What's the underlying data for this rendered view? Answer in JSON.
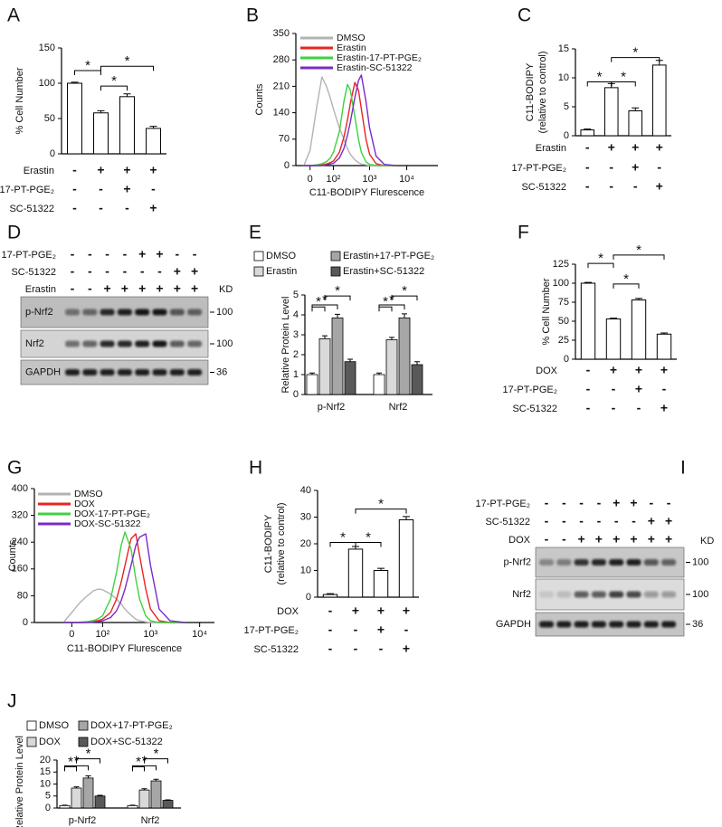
{
  "chart_data": [
    {
      "panel": "A",
      "type": "bar",
      "ylabel": "% Cell Number",
      "values": [
        100,
        58,
        81,
        36
      ],
      "errors": [
        1.5,
        3,
        4,
        3
      ],
      "color": "#ffffff",
      "ylim": [
        0,
        150
      ],
      "yticks": [
        0,
        50,
        100,
        150
      ],
      "conditions": [
        {
          "label": "Erastin",
          "marks": [
            "-",
            "+",
            "+",
            "+"
          ]
        },
        {
          "label": "17-PT-PGE₂",
          "marks": [
            "-",
            "-",
            "+",
            "-"
          ]
        },
        {
          "label": "SC-51322",
          "marks": [
            "-",
            "-",
            "-",
            "+"
          ]
        }
      ],
      "annotations": [
        "*",
        "*",
        "*"
      ]
    },
    {
      "panel": "B",
      "type": "line",
      "xscale": "biexponential",
      "xlabel": "C11-BODIPY Flurescence",
      "ylabel": "Counts",
      "x": [
        -20,
        0,
        20,
        40,
        60,
        80,
        100,
        150,
        200,
        250,
        300,
        400,
        500,
        600,
        800,
        1000,
        1500,
        2500,
        5000
      ],
      "series": [
        {
          "name": "DMSO",
          "color": "#b3b3b3",
          "values": [
            0,
            40,
            150,
            235,
            210,
            180,
            150,
            100,
            70,
            45,
            30,
            15,
            8,
            4,
            2,
            0,
            0,
            0,
            0
          ]
        },
        {
          "name": "Erastin",
          "color": "#e8251f",
          "values": [
            0,
            0,
            0,
            2,
            4,
            8,
            12,
            35,
            75,
            120,
            165,
            220,
            200,
            150,
            70,
            30,
            5,
            0,
            0
          ]
        },
        {
          "name": "Erastin-17-PT-PGE₂",
          "color": "#3fd13f",
          "values": [
            0,
            0,
            2,
            5,
            10,
            20,
            35,
            90,
            170,
            215,
            200,
            130,
            70,
            35,
            10,
            3,
            0,
            0,
            0
          ]
        },
        {
          "name": "Erastin-SC-51322",
          "color": "#7a2bc7",
          "values": [
            0,
            0,
            0,
            0,
            2,
            4,
            6,
            20,
            45,
            80,
            115,
            180,
            225,
            240,
            170,
            100,
            25,
            3,
            0
          ]
        }
      ],
      "xlim": [
        -50,
        69000
      ],
      "xticks": [
        0,
        {
          "value": 100,
          "label": "10²"
        },
        {
          "value": 1000,
          "label": "10³"
        },
        {
          "value": 10000,
          "label": "10⁴"
        }
      ],
      "ylim": [
        0,
        350
      ],
      "yticks": [
        0,
        70,
        140,
        210,
        280,
        350
      ],
      "legend": "upper left"
    },
    {
      "panel": "C",
      "type": "bar",
      "ylabel": [
        "C11-BODIPY",
        "(relative to control)"
      ],
      "values": [
        1,
        8.3,
        4.3,
        12.2
      ],
      "errors": [
        0.15,
        0.7,
        0.5,
        0.8
      ],
      "color": "#ffffff",
      "ylim": [
        0,
        15
      ],
      "yticks": [
        0,
        5,
        10,
        15
      ],
      "conditions": [
        {
          "label": "Erastin",
          "marks": [
            "-",
            "+",
            "+",
            "+"
          ]
        },
        {
          "label": "17-PT-PGE₂",
          "marks": [
            "-",
            "-",
            "+",
            "-"
          ]
        },
        {
          "label": "SC-51322",
          "marks": [
            "-",
            "-",
            "-",
            "+"
          ]
        }
      ],
      "annotations": [
        "*",
        "*",
        "*"
      ]
    },
    {
      "panel": "E",
      "type": "bar",
      "ylabel": "Relative Protein Level",
      "categories": [
        "p-Nrf2",
        "Nrf2"
      ],
      "series": [
        {
          "name": "DMSO",
          "color": "#ffffff",
          "values": [
            1,
            1
          ],
          "errors": [
            0.08,
            0.08
          ]
        },
        {
          "name": "Erastin",
          "color": "#d9d9d9",
          "values": [
            2.8,
            2.75
          ],
          "errors": [
            0.15,
            0.12
          ]
        },
        {
          "name": "Erastin+17-PT-PGE₂",
          "color": "#a6a6a6",
          "values": [
            3.85,
            3.85
          ],
          "errors": [
            0.18,
            0.2
          ]
        },
        {
          "name": "Erastin+SC-51322",
          "color": "#595959",
          "values": [
            1.65,
            1.5
          ],
          "errors": [
            0.12,
            0.15
          ]
        }
      ],
      "ylim": [
        0,
        5
      ],
      "yticks": [
        0,
        1,
        2,
        3,
        4,
        5
      ],
      "legend": "top",
      "annotations": [
        "*",
        "*",
        "*",
        "*",
        "*",
        "*"
      ]
    },
    {
      "panel": "F",
      "type": "bar",
      "ylabel": "% Cell Number",
      "values": [
        100,
        53,
        78,
        33
      ],
      "errors": [
        1,
        1,
        2,
        1.5
      ],
      "color": "#ffffff",
      "ylim": [
        0,
        125
      ],
      "yticks": [
        0,
        25,
        50,
        75,
        100,
        125
      ],
      "conditions": [
        {
          "label": "DOX",
          "marks": [
            "-",
            "+",
            "+",
            "+"
          ]
        },
        {
          "label": "17-PT-PGE₂",
          "marks": [
            "-",
            "-",
            "+",
            "-"
          ]
        },
        {
          "label": "SC-51322",
          "marks": [
            "-",
            "-",
            "-",
            "+"
          ]
        }
      ],
      "annotations": [
        "*",
        "*",
        "*"
      ]
    },
    {
      "panel": "G",
      "type": "line",
      "xscale": "biexponential",
      "xlabel": "C11-BODIPY Flurescence",
      "ylabel": "Counts",
      "x": [
        -20,
        0,
        20,
        40,
        60,
        80,
        100,
        150,
        200,
        250,
        300,
        400,
        500,
        600,
        800,
        1000,
        1500,
        2500,
        5000
      ],
      "series": [
        {
          "name": "DMSO",
          "color": "#b3b3b3",
          "values": [
            0,
            30,
            60,
            80,
            95,
            100,
            98,
            85,
            70,
            55,
            40,
            22,
            10,
            5,
            2,
            0,
            0,
            0,
            0
          ]
        },
        {
          "name": "DOX",
          "color": "#e8251f",
          "values": [
            0,
            0,
            0,
            1,
            3,
            6,
            10,
            30,
            70,
            120,
            170,
            250,
            265,
            200,
            100,
            40,
            5,
            0,
            0
          ]
        },
        {
          "name": "DOX-17-PT-PGE₂",
          "color": "#3fd13f",
          "values": [
            0,
            0,
            1,
            3,
            6,
            12,
            20,
            70,
            150,
            230,
            270,
            220,
            130,
            70,
            20,
            5,
            0,
            0,
            0
          ]
        },
        {
          "name": "DOX-SC-51322",
          "color": "#7a2bc7",
          "values": [
            0,
            0,
            0,
            0,
            1,
            3,
            5,
            15,
            35,
            65,
            100,
            170,
            230,
            255,
            265,
            170,
            40,
            5,
            0
          ]
        }
      ],
      "xlim": [
        -140,
        20000
      ],
      "xticks": [
        0,
        {
          "value": 100,
          "label": "10²"
        },
        {
          "value": 1000,
          "label": "10³"
        },
        {
          "value": 10000,
          "label": "10⁴"
        }
      ],
      "ylim": [
        0,
        400
      ],
      "yticks": [
        0,
        80,
        160,
        240,
        320,
        400
      ],
      "legend": "upper left"
    },
    {
      "panel": "H",
      "type": "bar",
      "ylabel": [
        "C11-BODIPY",
        "(relative to control)"
      ],
      "values": [
        1,
        18,
        10,
        29
      ],
      "errors": [
        0.3,
        1,
        0.8,
        1.2
      ],
      "color": "#ffffff",
      "ylim": [
        0,
        40
      ],
      "yticks": [
        0,
        10,
        20,
        30,
        40
      ],
      "conditions": [
        {
          "label": "DOX",
          "marks": [
            "-",
            "+",
            "+",
            "+"
          ]
        },
        {
          "label": "17-PT-PGE₂",
          "marks": [
            "-",
            "-",
            "+",
            "-"
          ]
        },
        {
          "label": "SC-51322",
          "marks": [
            "-",
            "-",
            "-",
            "+"
          ]
        }
      ],
      "annotations": [
        "*",
        "*",
        "*"
      ]
    },
    {
      "panel": "J",
      "type": "bar",
      "ylabel": "Relative Protein Level",
      "categories": [
        "p-Nrf2",
        "Nrf2"
      ],
      "series": [
        {
          "name": "DMSO",
          "color": "#ffffff",
          "values": [
            1,
            1
          ],
          "errors": [
            0.2,
            0.2
          ]
        },
        {
          "name": "DOX",
          "color": "#d9d9d9",
          "values": [
            8.3,
            7.5
          ],
          "errors": [
            0.5,
            0.5
          ]
        },
        {
          "name": "DOX+17-PT-PGE₂",
          "color": "#a6a6a6",
          "values": [
            12.5,
            11.3
          ],
          "errors": [
            0.9,
            0.7
          ]
        },
        {
          "name": "DOX+SC-51322",
          "color": "#595959",
          "values": [
            5,
            3.2
          ],
          "errors": [
            0.3,
            0.2
          ]
        }
      ],
      "ylim": [
        0,
        20
      ],
      "yticks": [
        0,
        5,
        10,
        15,
        20
      ],
      "legend": "top",
      "annotations": [
        "*",
        "*",
        "*",
        "*",
        "*",
        "*"
      ]
    }
  ],
  "blots": [
    {
      "panel": "D",
      "treatments": [
        {
          "label": "17-PT-PGE₂",
          "marks": [
            "-",
            "-",
            "-",
            "-",
            "+",
            "+",
            "-",
            "-"
          ]
        },
        {
          "label": "SC-51322",
          "marks": [
            "-",
            "-",
            "-",
            "-",
            "-",
            "-",
            "+",
            "+"
          ]
        },
        {
          "label": "Erastin",
          "marks": [
            "-",
            "-",
            "+",
            "+",
            "+",
            "+",
            "+",
            "+"
          ]
        }
      ],
      "kd_header": "KD",
      "rows": [
        {
          "label": "p-Nrf2",
          "kd": "100"
        },
        {
          "label": "Nrf2",
          "kd": "100"
        },
        {
          "label": "GAPDH",
          "kd": "36"
        }
      ]
    },
    {
      "panel": "I",
      "treatments": [
        {
          "label": "17-PT-PGE₂",
          "marks": [
            "-",
            "-",
            "-",
            "-",
            "+",
            "+",
            "-",
            "-"
          ]
        },
        {
          "label": "SC-51322",
          "marks": [
            "-",
            "-",
            "-",
            "-",
            "-",
            "-",
            "+",
            "+"
          ]
        },
        {
          "label": "DOX",
          "marks": [
            "-",
            "-",
            "+",
            "+",
            "+",
            "+",
            "+",
            "+"
          ]
        }
      ],
      "kd_header": "KD",
      "rows": [
        {
          "label": "p-Nrf2",
          "kd": "100"
        },
        {
          "label": "Nrf2",
          "kd": "100"
        },
        {
          "label": "GAPDH",
          "kd": "36"
        }
      ]
    }
  ]
}
